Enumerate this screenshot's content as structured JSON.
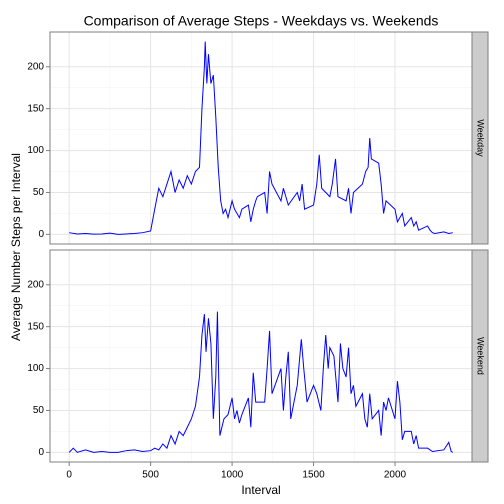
{
  "chart_data": {
    "type": "line",
    "title": "Comparison of Average Steps - Weekdays vs. Weekends",
    "x_label": "Interval",
    "y_label": "Average Number Steps per Interval",
    "xlim": [
      -117.75,
      2472.75
    ],
    "xticks": [
      0,
      500,
      1000,
      1500,
      2000
    ],
    "ylim": [
      -11.5,
      241.5
    ],
    "yticks": [
      0,
      50,
      100,
      150,
      200
    ],
    "grid": true,
    "series": [
      {
        "name": "Weekday",
        "color": "#0000ff",
        "x": [
          0,
          50,
          100,
          150,
          200,
          250,
          300,
          350,
          400,
          450,
          500,
          525,
          550,
          575,
          600,
          625,
          650,
          675,
          700,
          725,
          750,
          775,
          800,
          815,
          830,
          835,
          845,
          855,
          870,
          885,
          900,
          915,
          930,
          945,
          960,
          975,
          1000,
          1015,
          1030,
          1045,
          1060,
          1100,
          1115,
          1130,
          1145,
          1155,
          1200,
          1215,
          1230,
          1245,
          1300,
          1315,
          1330,
          1345,
          1400,
          1415,
          1430,
          1445,
          1500,
          1520,
          1535,
          1550,
          1600,
          1615,
          1635,
          1650,
          1700,
          1715,
          1730,
          1745,
          1800,
          1820,
          1835,
          1845,
          1855,
          1900,
          1915,
          1930,
          1945,
          2000,
          2015,
          2030,
          2045,
          2060,
          2100,
          2115,
          2130,
          2145,
          2200,
          2215,
          2230,
          2245,
          2300,
          2330,
          2355
        ],
        "values": [
          2,
          0.5,
          1,
          0.3,
          0.5,
          1.5,
          0,
          0.5,
          1,
          2,
          4,
          30,
          55,
          45,
          60,
          75,
          50,
          65,
          55,
          70,
          60,
          75,
          80,
          150,
          200,
          230,
          180,
          215,
          180,
          190,
          140,
          80,
          40,
          25,
          30,
          20,
          40,
          30,
          25,
          20,
          30,
          35,
          15,
          30,
          40,
          45,
          50,
          25,
          75,
          60,
          40,
          55,
          45,
          35,
          50,
          40,
          60,
          30,
          35,
          60,
          95,
          55,
          45,
          60,
          90,
          45,
          40,
          55,
          25,
          50,
          60,
          75,
          80,
          115,
          90,
          85,
          60,
          25,
          40,
          30,
          15,
          20,
          25,
          10,
          20,
          10,
          15,
          5,
          10,
          5,
          2,
          1,
          3,
          1,
          2
        ]
      },
      {
        "name": "Weekend",
        "color": "#0000ff",
        "x": [
          0,
          25,
          50,
          100,
          150,
          200,
          250,
          300,
          350,
          400,
          450,
          500,
          525,
          550,
          575,
          600,
          625,
          650,
          675,
          700,
          725,
          750,
          775,
          800,
          815,
          830,
          840,
          855,
          870,
          885,
          900,
          910,
          925,
          950,
          975,
          1000,
          1015,
          1030,
          1045,
          1060,
          1100,
          1115,
          1130,
          1145,
          1200,
          1215,
          1230,
          1245,
          1300,
          1315,
          1330,
          1345,
          1360,
          1400,
          1425,
          1440,
          1460,
          1500,
          1520,
          1545,
          1560,
          1575,
          1590,
          1600,
          1625,
          1650,
          1665,
          1680,
          1700,
          1715,
          1730,
          1745,
          1760,
          1800,
          1815,
          1830,
          1845,
          1860,
          1900,
          1915,
          1930,
          1945,
          1960,
          2000,
          2015,
          2030,
          2045,
          2060,
          2100,
          2115,
          2130,
          2145,
          2200,
          2230,
          2300,
          2330,
          2345,
          2355
        ],
        "values": [
          0,
          5,
          0,
          3,
          0,
          1,
          0,
          0,
          2,
          3,
          1,
          2,
          5,
          3,
          10,
          5,
          20,
          10,
          25,
          20,
          30,
          40,
          55,
          90,
          140,
          165,
          120,
          160,
          130,
          40,
          90,
          168,
          20,
          40,
          45,
          65,
          40,
          50,
          35,
          45,
          65,
          30,
          95,
          60,
          60,
          100,
          145,
          70,
          100,
          50,
          90,
          120,
          40,
          80,
          135,
          100,
          60,
          80,
          70,
          50,
          100,
          140,
          100,
          125,
          115,
          60,
          130,
          100,
          90,
          125,
          70,
          80,
          55,
          70,
          40,
          30,
          70,
          40,
          50,
          20,
          60,
          50,
          65,
          40,
          85,
          60,
          15,
          25,
          25,
          10,
          20,
          5,
          5,
          1,
          3,
          12,
          1,
          0
        ]
      }
    ]
  }
}
